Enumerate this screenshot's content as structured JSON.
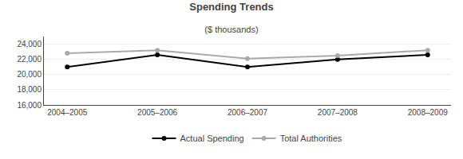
{
  "chart_data": {
    "type": "line",
    "title": "Spending Trends",
    "subtitle": "($ thousands)",
    "categories": [
      "2004–2005",
      "2005–2006",
      "2006–2007",
      "2007–2008",
      "2008–2009"
    ],
    "series": [
      {
        "name": "Actual Spending",
        "color": "#000000",
        "marker": "circle",
        "line_style": "solid",
        "values": [
          21000,
          22600,
          21000,
          22000,
          22600
        ]
      },
      {
        "name": "Total Authorities",
        "color": "#aaaaaa",
        "marker": "circle",
        "line_style": "solid",
        "values": [
          22800,
          23200,
          22100,
          22500,
          23200
        ]
      }
    ],
    "ylim": [
      16000,
      25000
    ],
    "yticks": [
      {
        "value": 16000,
        "label": "16,000"
      },
      {
        "value": 18000,
        "label": "18,000"
      },
      {
        "value": 20000,
        "label": "20,000"
      },
      {
        "value": 22000,
        "label": "22,000"
      },
      {
        "value": 24000,
        "label": "24,000"
      }
    ],
    "grid": true,
    "legend": "bottom"
  }
}
